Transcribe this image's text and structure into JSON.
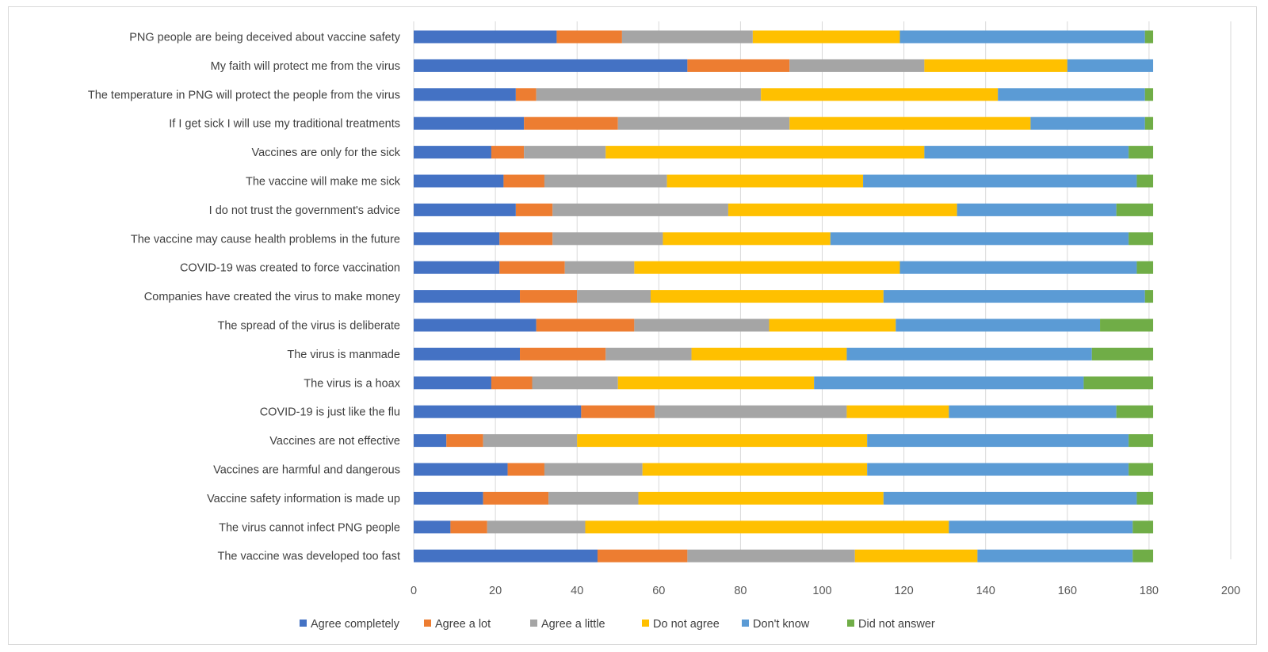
{
  "chart_data": {
    "type": "bar",
    "orientation": "horizontal",
    "stacked": true,
    "title": "",
    "xlabel": "",
    "ylabel": "",
    "xlim": [
      0,
      200
    ],
    "xticks": [
      0,
      20,
      40,
      60,
      80,
      100,
      120,
      140,
      160,
      180,
      200
    ],
    "grid": true,
    "legend_position": "bottom",
    "categories": [
      "PNG people are being deceived about vaccine safety",
      "My faith will protect me from the virus",
      "The temperature in PNG will protect the people from the virus",
      "If I get sick I will use my traditional treatments",
      "Vaccines are only for the sick",
      "The vaccine will make me sick",
      "I do not trust the government's advice",
      "The vaccine may cause health problems in the future",
      "COVID-19 was created to force vaccination",
      "Companies have created the virus to make money",
      "The spread of the virus is deliberate",
      "The virus is manmade",
      "The virus is a hoax",
      "COVID-19 is just like the flu",
      "Vaccines are not effective",
      "Vaccines are harmful and dangerous",
      "Vaccine safety information is made up",
      "The virus cannot infect PNG people",
      "The vaccine was developed too fast"
    ],
    "series": [
      {
        "name": "Agree completely",
        "color": "#4472C4",
        "values": [
          35,
          67,
          25,
          27,
          19,
          22,
          25,
          21,
          21,
          26,
          30,
          26,
          19,
          41,
          8,
          23,
          17,
          9,
          45
        ]
      },
      {
        "name": "Agree a lot",
        "color": "#ED7D31",
        "values": [
          16,
          25,
          5,
          23,
          8,
          10,
          9,
          13,
          16,
          14,
          24,
          21,
          10,
          18,
          9,
          9,
          16,
          9,
          22
        ]
      },
      {
        "name": "Agree a little",
        "color": "#A5A5A5",
        "values": [
          32,
          33,
          55,
          42,
          20,
          30,
          43,
          27,
          17,
          18,
          33,
          21,
          21,
          47,
          23,
          24,
          22,
          24,
          41
        ]
      },
      {
        "name": "Do not agree",
        "color": "#FFC000",
        "values": [
          36,
          35,
          58,
          59,
          78,
          48,
          56,
          41,
          65,
          57,
          31,
          38,
          48,
          25,
          71,
          55,
          60,
          89,
          30
        ]
      },
      {
        "name": "Don't know",
        "color": "#5B9BD5",
        "values": [
          60,
          21,
          36,
          28,
          50,
          67,
          39,
          73,
          58,
          64,
          50,
          60,
          66,
          41,
          64,
          64,
          62,
          45,
          38
        ]
      },
      {
        "name": "Did not answer",
        "color": "#70AD47",
        "values": [
          2,
          0,
          2,
          2,
          6,
          4,
          9,
          6,
          4,
          2,
          13,
          15,
          17,
          9,
          6,
          6,
          4,
          5,
          5
        ]
      }
    ]
  }
}
